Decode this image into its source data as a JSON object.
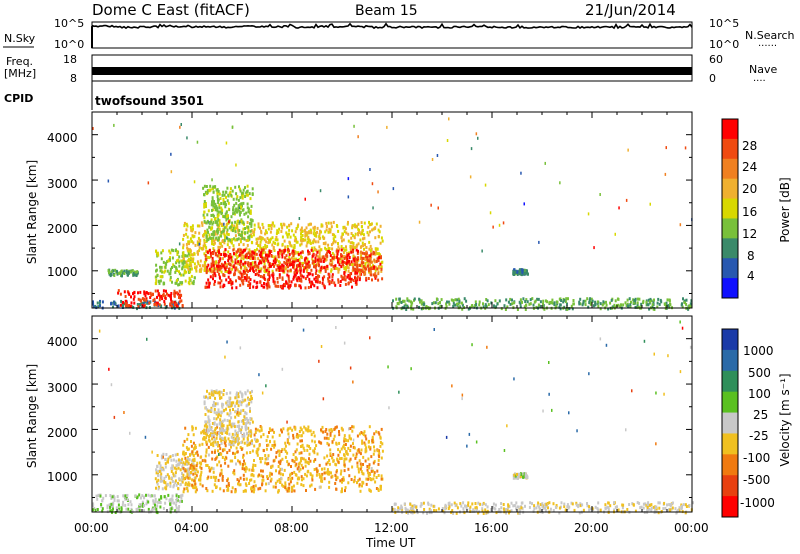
{
  "header": {
    "title": "Dome C East (fitACF)",
    "beam": "Beam 15",
    "date": "21/Jun/2014"
  },
  "top_panels": {
    "nsky_label": "N.Sky",
    "nsearch_label": "N.Search",
    "noise_ticks_left": [
      "10^5",
      "10^0"
    ],
    "noise_ticks_right": [
      "10^5",
      "10^0"
    ],
    "freq_label_line1": "Freq.",
    "freq_label_line2": "[MHz]",
    "freq_ticks": [
      "18",
      "8"
    ],
    "nave_label": "Nave",
    "nave_ticks": [
      "60",
      "0"
    ],
    "cpid_label": "CPID",
    "cpid_value": "twofsound 3501",
    "dots": "......",
    "dots_short": "...."
  },
  "power_panel": {
    "ylabel": "Slant Range [km]",
    "yticks": [
      "4000",
      "3000",
      "2000",
      "1000"
    ],
    "colorbar_label": "Power [dB]",
    "colorbar_ticks": [
      "28",
      "24",
      "20",
      "16",
      "12",
      "8",
      "4"
    ],
    "colorbar_colors": [
      "#ff0000",
      "#f04a10",
      "#f08020",
      "#f0b030",
      "#d8d800",
      "#78c03a",
      "#3a8a6a",
      "#2858b0",
      "#1010ff"
    ]
  },
  "velocity_panel": {
    "ylabel": "Slant Range [km]",
    "yticks": [
      "4000",
      "3000",
      "2000",
      "1000"
    ],
    "colorbar_label": "Velocity [m s⁻¹]",
    "colorbar_ticks": [
      "1000",
      "500",
      "100",
      "25",
      "-25",
      "-100",
      "-500",
      "-1000"
    ],
    "colorbar_colors": [
      "#1a3aa8",
      "#2a6aa8",
      "#2f8f5a",
      "#5ac020",
      "#c8c8c8",
      "#f0c020",
      "#f07a10",
      "#e84010",
      "#ff0000"
    ]
  },
  "x_axis": {
    "ticks": [
      "00:00",
      "04:00",
      "08:00",
      "12:00",
      "16:00",
      "20:00",
      "00:00"
    ],
    "label": "Time UT"
  },
  "chart_data": [
    {
      "type": "line",
      "series": [
        {
          "name": "N.Sky",
          "values": [
            4.2,
            4.0,
            4.1,
            4.2,
            4.1,
            4.0,
            4.2,
            4.1,
            4.0,
            4.1,
            4.1,
            4.0,
            4.0,
            4.0,
            4.0,
            4.0,
            4.0,
            4.0,
            4.0,
            4.0,
            4.0,
            4.0,
            4.0,
            4.0
          ]
        }
      ],
      "x": [
        0,
        1,
        2,
        3,
        4,
        5,
        6,
        7,
        8,
        9,
        10,
        11,
        12,
        13,
        14,
        15,
        16,
        17,
        18,
        19,
        20,
        21,
        22,
        23
      ],
      "ylim": [
        0,
        5
      ],
      "yscale": "log"
    },
    {
      "type": "line",
      "series": [
        {
          "name": "Freq.",
          "values": [
            11,
            11,
            11,
            11,
            11,
            11,
            11,
            11,
            11,
            11,
            11,
            11,
            11,
            11,
            11,
            11,
            11,
            11,
            11,
            11,
            11,
            11,
            11,
            11
          ]
        }
      ],
      "x": [
        0,
        1,
        2,
        3,
        4,
        5,
        6,
        7,
        8,
        9,
        10,
        11,
        12,
        13,
        14,
        15,
        16,
        17,
        18,
        19,
        20,
        21,
        22,
        23
      ],
      "ylim": [
        8,
        18
      ]
    },
    {
      "type": "heatmap",
      "xlim": [
        0,
        24
      ],
      "ylim": [
        180,
        4500
      ],
      "x_units": "hours UT",
      "y_units": "km",
      "clim": [
        0,
        30
      ],
      "patches": [
        {
          "t0": 0.0,
          "t1": 3.6,
          "r0": 200,
          "r1": 360,
          "value": 6
        },
        {
          "t0": 1.0,
          "t1": 3.6,
          "r0": 240,
          "r1": 600,
          "value": 28
        },
        {
          "t0": 0.6,
          "t1": 1.8,
          "r0": 920,
          "r1": 1050,
          "value": 9
        },
        {
          "t0": 2.5,
          "t1": 4.1,
          "r0": 720,
          "r1": 1500,
          "value": 13
        },
        {
          "t0": 3.6,
          "t1": 11.6,
          "r0": 1000,
          "r1": 2100,
          "value": 17
        },
        {
          "t0": 4.5,
          "t1": 10.6,
          "r0": 650,
          "r1": 1500,
          "value": 28
        },
        {
          "t0": 10.4,
          "t1": 11.6,
          "r0": 820,
          "r1": 1450,
          "value": 26
        },
        {
          "t0": 4.4,
          "t1": 6.4,
          "r0": 1700,
          "r1": 2900,
          "value": 12
        },
        {
          "t0": 16.8,
          "t1": 17.4,
          "r0": 950,
          "r1": 1060,
          "value": 7
        },
        {
          "t0": 12.0,
          "t1": 24.0,
          "r0": 180,
          "r1": 420,
          "value": 10
        }
      ]
    },
    {
      "type": "heatmap",
      "xlim": [
        0,
        24
      ],
      "ylim": [
        180,
        4500
      ],
      "x_units": "hours UT",
      "y_units": "km",
      "clim": [
        -1000,
        1000
      ],
      "patches": [
        {
          "t0": 0.0,
          "t1": 3.6,
          "r0": 200,
          "r1": 600,
          "value": 60
        },
        {
          "t0": 2.5,
          "t1": 4.1,
          "r0": 720,
          "r1": 1500,
          "value": -100
        },
        {
          "t0": 3.6,
          "t1": 11.6,
          "r0": 650,
          "r1": 2100,
          "value": -300
        },
        {
          "t0": 4.4,
          "t1": 6.4,
          "r0": 1700,
          "r1": 2900,
          "value": -100
        },
        {
          "t0": 16.8,
          "t1": 17.4,
          "r0": 950,
          "r1": 1060,
          "value": 0
        },
        {
          "t0": 12.0,
          "t1": 24.0,
          "r0": 180,
          "r1": 420,
          "value": -80
        }
      ]
    }
  ]
}
